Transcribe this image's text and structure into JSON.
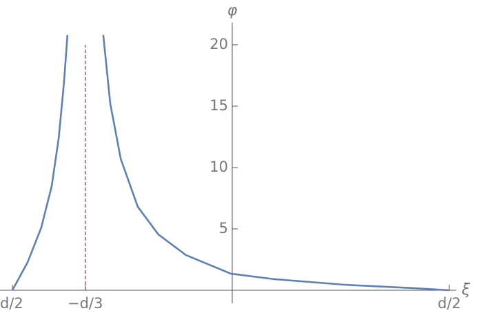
{
  "chart_data": {
    "type": "line",
    "x_label": "ξ",
    "y_label": "φ",
    "x": [
      -0.5,
      -0.465,
      -0.434,
      -0.41,
      -0.394,
      -0.382,
      -0.374,
      -0.3333,
      -0.292,
      -0.276,
      -0.252,
      -0.213,
      -0.166,
      -0.103,
      0,
      0.1,
      0.26,
      0.418,
      0.5
    ],
    "series": [
      {
        "color": "#5e81b5",
        "values": [
          0,
          2.3,
          5.1,
          8.5,
          12.4,
          16.9,
          20.8,
          null,
          20.8,
          15.2,
          10.7,
          6.8,
          4.55,
          2.87,
          1.35,
          0.9,
          0.45,
          0.17,
          0
        ]
      }
    ],
    "asymptote": {
      "x": -0.3333,
      "y": [
        0,
        20
      ],
      "color": "#d62728"
    },
    "xlim": [
      -0.5,
      0.5
    ],
    "ylim": [
      0,
      21.7
    ],
    "xticks": [
      {
        "value": -0.5,
        "label": "d/2"
      },
      {
        "value": -0.3333,
        "label": "−d/3"
      },
      {
        "value": 0.5,
        "label": "d/2"
      }
    ],
    "yticks": [
      5,
      10,
      15,
      20
    ]
  }
}
